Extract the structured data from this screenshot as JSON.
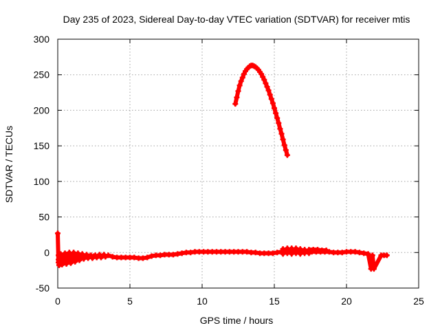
{
  "chart_data": {
    "type": "scatter",
    "title": "Day 235 of 2023, Sidereal Day-to-day VTEC variation (SDTVAR) for receiver mtis",
    "xlabel": "GPS time / hours",
    "ylabel": "SDTVAR / TECUs",
    "xlim": [
      0,
      25
    ],
    "ylim": [
      -50,
      300
    ],
    "xticks": [
      0,
      5,
      10,
      15,
      20,
      25
    ],
    "yticks": [
      -50,
      0,
      50,
      100,
      150,
      200,
      250,
      300
    ],
    "grid": true,
    "legend": "none",
    "marker": "plus",
    "color": "#ff0000",
    "series": [
      {
        "points": [
          [
            0.0,
            27
          ],
          [
            0.05,
            -14
          ],
          [
            0.05,
            -10
          ],
          [
            0.05,
            -4
          ],
          [
            0.1,
            -17
          ],
          [
            0.3,
            -17
          ],
          [
            0.6,
            -16
          ],
          [
            0.9,
            -15
          ],
          [
            1.2,
            -13
          ],
          [
            1.5,
            -11
          ],
          [
            1.8,
            -9
          ],
          [
            2.1,
            -8
          ],
          [
            2.4,
            -8
          ],
          [
            2.7,
            -7
          ],
          [
            3.0,
            -7
          ],
          [
            3.3,
            -6
          ],
          [
            0.2,
            -2
          ],
          [
            0.5,
            -1
          ],
          [
            0.8,
            0
          ],
          [
            1.1,
            0
          ],
          [
            1.4,
            -1
          ],
          [
            1.7,
            -2
          ],
          [
            2.0,
            -3
          ],
          [
            2.3,
            -4
          ],
          [
            2.6,
            -4
          ],
          [
            2.9,
            -3
          ],
          [
            3.2,
            -3
          ],
          [
            3.5,
            -4
          ],
          [
            3.8,
            -6
          ],
          [
            4.1,
            -7
          ],
          [
            4.4,
            -7
          ],
          [
            4.7,
            -7
          ],
          [
            5.0,
            -7
          ],
          [
            5.3,
            -7
          ],
          [
            5.6,
            -8
          ],
          [
            5.9,
            -8
          ],
          [
            6.2,
            -7
          ],
          [
            6.5,
            -5
          ],
          [
            6.8,
            -4
          ],
          [
            7.1,
            -4
          ],
          [
            7.4,
            -3
          ],
          [
            7.7,
            -3
          ],
          [
            8.0,
            -3
          ],
          [
            8.3,
            -2
          ],
          [
            8.6,
            -1
          ],
          [
            8.9,
            0
          ],
          [
            9.2,
            0
          ],
          [
            9.5,
            1
          ],
          [
            9.8,
            1
          ],
          [
            10.1,
            1
          ],
          [
            10.4,
            1
          ],
          [
            10.7,
            1
          ],
          [
            11.0,
            1
          ],
          [
            11.3,
            1
          ],
          [
            11.6,
            1
          ],
          [
            11.9,
            1
          ],
          [
            12.2,
            1
          ],
          [
            12.5,
            1
          ],
          [
            12.8,
            1
          ],
          [
            13.1,
            1
          ],
          [
            13.4,
            0
          ],
          [
            13.7,
            0
          ],
          [
            14.0,
            -1
          ],
          [
            14.3,
            -1
          ],
          [
            14.6,
            -1
          ],
          [
            14.9,
            -1
          ],
          [
            15.2,
            0
          ],
          [
            15.5,
            1
          ],
          [
            15.8,
            1
          ],
          [
            16.1,
            1
          ],
          [
            16.4,
            1
          ],
          [
            16.7,
            1
          ],
          [
            17.0,
            1
          ],
          [
            17.3,
            1
          ],
          [
            17.6,
            1
          ],
          [
            17.9,
            1
          ],
          [
            18.2,
            1
          ],
          [
            18.5,
            1
          ],
          [
            18.8,
            1
          ],
          [
            19.1,
            0
          ],
          [
            19.4,
            0
          ],
          [
            19.7,
            0
          ],
          [
            20.0,
            1
          ],
          [
            20.3,
            1
          ],
          [
            20.6,
            1
          ],
          [
            20.9,
            0
          ],
          [
            21.2,
            -1
          ],
          [
            21.5,
            -2
          ],
          [
            21.8,
            -4
          ],
          [
            21.7,
            -23
          ],
          [
            21.9,
            -23
          ],
          [
            22.4,
            -4
          ],
          [
            22.6,
            -4
          ],
          [
            22.8,
            -4
          ]
        ]
      },
      {
        "points": [
          [
            12.3,
            209
          ],
          [
            12.4,
            218
          ],
          [
            12.5,
            227
          ],
          [
            12.6,
            235
          ],
          [
            12.7,
            241
          ],
          [
            12.8,
            246
          ],
          [
            12.9,
            251
          ],
          [
            13.0,
            255
          ],
          [
            13.1,
            258
          ],
          [
            13.2,
            260
          ],
          [
            13.3,
            262
          ],
          [
            13.4,
            263
          ],
          [
            13.5,
            263
          ],
          [
            13.6,
            262
          ],
          [
            13.7,
            261
          ],
          [
            13.8,
            259
          ],
          [
            13.9,
            257
          ],
          [
            14.0,
            254
          ],
          [
            14.1,
            251
          ],
          [
            14.2,
            247
          ],
          [
            14.3,
            243
          ],
          [
            14.4,
            238
          ],
          [
            14.5,
            233
          ],
          [
            14.6,
            228
          ],
          [
            14.7,
            222
          ],
          [
            14.8,
            216
          ],
          [
            14.9,
            210
          ],
          [
            15.0,
            203
          ],
          [
            15.1,
            196
          ],
          [
            15.2,
            189
          ],
          [
            15.3,
            182
          ],
          [
            15.4,
            174
          ],
          [
            15.5,
            167
          ],
          [
            15.6,
            159
          ],
          [
            15.7,
            151
          ],
          [
            15.8,
            144
          ],
          [
            15.9,
            137
          ]
        ]
      },
      {
        "points": [
          [
            0.1,
            -18
          ],
          [
            0.4,
            -15
          ],
          [
            0.7,
            -12
          ],
          [
            1.0,
            -10
          ],
          [
            1.3,
            -8
          ],
          [
            1.6,
            -7
          ],
          [
            1.9,
            -6
          ],
          [
            2.2,
            -5
          ],
          [
            2.5,
            -5
          ],
          [
            2.8,
            -5
          ],
          [
            3.1,
            -5
          ],
          [
            15.6,
            -2
          ],
          [
            15.9,
            -1
          ],
          [
            16.2,
            -2
          ],
          [
            16.5,
            -1
          ],
          [
            16.8,
            -2
          ],
          [
            17.1,
            -1
          ],
          [
            17.4,
            -1
          ],
          [
            15.6,
            5
          ],
          [
            15.9,
            6
          ],
          [
            16.2,
            6
          ],
          [
            16.5,
            6
          ],
          [
            16.8,
            5
          ],
          [
            17.1,
            4
          ],
          [
            17.4,
            4
          ],
          [
            17.7,
            4
          ],
          [
            18.0,
            4
          ],
          [
            18.3,
            3
          ],
          [
            18.6,
            3
          ]
        ]
      }
    ]
  }
}
